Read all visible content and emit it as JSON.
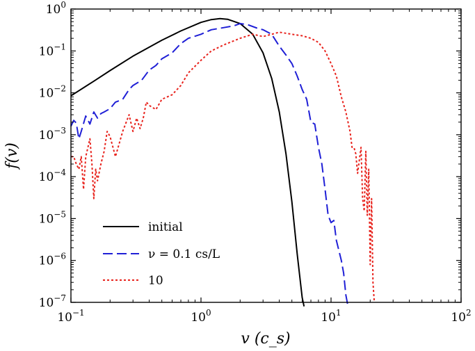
{
  "chart_data": {
    "type": "line",
    "xscale": "log",
    "yscale": "log",
    "xlim": [
      0.1,
      100
    ],
    "ylim": [
      1e-07,
      1
    ],
    "xlabel": "v (c_s)",
    "ylabel": "f(v)",
    "xticks": [
      {
        "value": 0.1,
        "base": "10",
        "exp": "−1"
      },
      {
        "value": 1,
        "base": "10",
        "exp": "0"
      },
      {
        "value": 10,
        "base": "10",
        "exp": "1"
      },
      {
        "value": 100,
        "base": "10",
        "exp": "2"
      }
    ],
    "yticks": [
      {
        "value": 1,
        "base": "10",
        "exp": "0"
      },
      {
        "value": 0.1,
        "base": "10",
        "exp": "−1"
      },
      {
        "value": 0.01,
        "base": "10",
        "exp": "−2"
      },
      {
        "value": 0.001,
        "base": "10",
        "exp": "−3"
      },
      {
        "value": 0.0001,
        "base": "10",
        "exp": "−4"
      },
      {
        "value": 1e-05,
        "base": "10",
        "exp": "−5"
      },
      {
        "value": 1e-06,
        "base": "10",
        "exp": "−6"
      },
      {
        "value": 1e-07,
        "base": "10",
        "exp": "−7"
      }
    ],
    "legend_position": "lower-left",
    "series": [
      {
        "name": "initial",
        "color": "#000000",
        "style": "solid",
        "x": [
          0.1,
          0.15,
          0.2,
          0.3,
          0.5,
          0.7,
          1.0,
          1.2,
          1.4,
          1.6,
          2.0,
          2.5,
          3.0,
          3.5,
          4.0,
          4.5,
          5.0,
          5.5,
          6.0,
          6.2
        ],
        "y": [
          0.0085,
          0.019,
          0.034,
          0.075,
          0.18,
          0.3,
          0.48,
          0.56,
          0.59,
          0.57,
          0.45,
          0.25,
          0.09,
          0.022,
          0.0035,
          0.00035,
          2.5e-05,
          1.4e-06,
          1.3e-07,
          8e-08
        ]
      },
      {
        "name": "ν = 0.1 c_s/L",
        "color": "#1f1fd6",
        "style": "dashed",
        "x": [
          0.1,
          0.105,
          0.11,
          0.115,
          0.12,
          0.13,
          0.14,
          0.15,
          0.16,
          0.17,
          0.18,
          0.2,
          0.22,
          0.25,
          0.28,
          0.3,
          0.35,
          0.4,
          0.45,
          0.5,
          0.6,
          0.7,
          0.8,
          1.0,
          1.2,
          1.5,
          1.8,
          2.0,
          2.3,
          2.7,
          3.0,
          3.5,
          4.0,
          4.5,
          5.0,
          5.5,
          6.0,
          6.5,
          7.0,
          7.5,
          8.0,
          8.5,
          9.0,
          9.5,
          10.0,
          10.5,
          11.0,
          12.0,
          12.5,
          13.0,
          13.5
        ],
        "y": [
          0.0016,
          0.0022,
          0.0019,
          0.0008,
          0.0012,
          0.0028,
          0.0018,
          0.0035,
          0.0025,
          0.0032,
          0.0035,
          0.0042,
          0.006,
          0.007,
          0.012,
          0.015,
          0.02,
          0.035,
          0.045,
          0.065,
          0.09,
          0.15,
          0.2,
          0.25,
          0.32,
          0.36,
          0.4,
          0.45,
          0.42,
          0.35,
          0.32,
          0.25,
          0.13,
          0.08,
          0.05,
          0.025,
          0.012,
          0.007,
          0.002,
          0.0018,
          0.0005,
          0.0002,
          5e-05,
          1.2e-05,
          8e-06,
          9e-06,
          3e-06,
          1e-06,
          5e-07,
          1.5e-07,
          8e-08
        ]
      },
      {
        "name": "10",
        "color": "#e8221c",
        "style": "dotted",
        "x": [
          0.1,
          0.105,
          0.11,
          0.115,
          0.12,
          0.125,
          0.13,
          0.14,
          0.145,
          0.15,
          0.155,
          0.16,
          0.17,
          0.18,
          0.19,
          0.2,
          0.22,
          0.25,
          0.28,
          0.3,
          0.32,
          0.34,
          0.36,
          0.38,
          0.4,
          0.45,
          0.5,
          0.6,
          0.7,
          0.8,
          1.0,
          1.2,
          1.5,
          2.0,
          2.5,
          3.0,
          3.5,
          4.0,
          5.0,
          6.0,
          7.0,
          8.0,
          9.0,
          10.0,
          11.0,
          12.0,
          13.0,
          14.0,
          14.5,
          15.0,
          15.5,
          16.0,
          16.5,
          17.0,
          17.5,
          18.0,
          18.5,
          19.0,
          19.5,
          20.0,
          20.5,
          21.0,
          21.5
        ],
        "y": [
          0.0003,
          0.0003,
          0.0002,
          0.00015,
          0.0003,
          5e-05,
          0.0003,
          0.0008,
          0.0002,
          3e-05,
          0.00015,
          8e-05,
          0.0002,
          0.0004,
          0.0012,
          0.0009,
          0.0003,
          0.0012,
          0.003,
          0.0012,
          0.0025,
          0.0014,
          0.0025,
          0.006,
          0.005,
          0.004,
          0.007,
          0.009,
          0.015,
          0.03,
          0.06,
          0.1,
          0.14,
          0.2,
          0.25,
          0.22,
          0.25,
          0.28,
          0.25,
          0.23,
          0.2,
          0.16,
          0.1,
          0.05,
          0.025,
          0.008,
          0.0035,
          0.0012,
          0.0005,
          0.0005,
          0.00035,
          0.00012,
          0.00025,
          0.0005,
          3e-05,
          1.5e-05,
          0.0004,
          1.2e-05,
          0.00015,
          8e-07,
          3e-05,
          3e-07,
          1e-07
        ]
      }
    ],
    "legend": [
      {
        "series": 0,
        "label": "initial"
      },
      {
        "series": 1,
        "label": "ν = 0.1 cs/L"
      },
      {
        "series": 2,
        "label": "10"
      }
    ]
  }
}
